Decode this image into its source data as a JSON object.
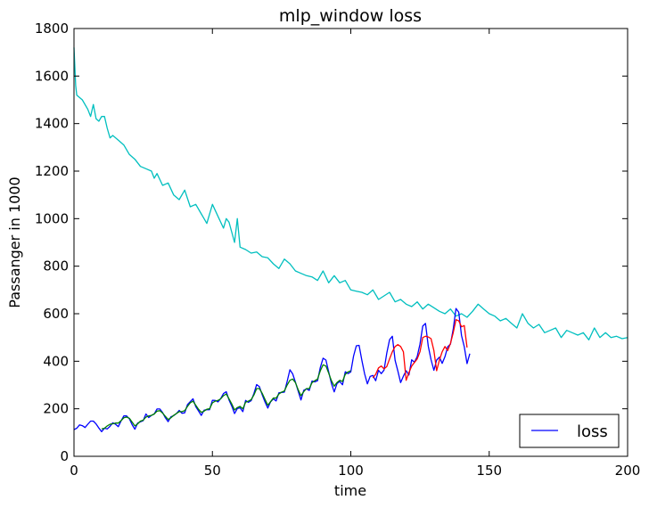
{
  "chart_data": {
    "type": "line",
    "title": "mlp_window loss",
    "xlabel": "time",
    "ylabel": "Passanger in 1000",
    "xlim": [
      0,
      200
    ],
    "ylim": [
      0,
      1800
    ],
    "xticks": [
      0,
      50,
      100,
      150,
      200
    ],
    "yticks": [
      0,
      200,
      400,
      600,
      800,
      1000,
      1200,
      1400,
      1600,
      1800
    ],
    "grid": false,
    "legend": {
      "position": "bottom-right",
      "entries": [
        {
          "label": "loss",
          "color": "#0000ff"
        }
      ]
    },
    "series": [
      {
        "name": "",
        "color": "#00bfbf",
        "x": [
          0,
          0.6,
          1,
          3,
          5,
          6,
          7,
          8,
          9,
          10,
          11,
          12,
          13,
          14,
          16,
          18,
          20,
          22,
          24,
          26,
          28,
          29,
          30,
          32,
          34,
          36,
          38,
          40,
          42,
          44,
          46,
          47,
          48,
          50,
          52,
          54,
          55,
          56,
          58,
          59,
          60,
          62,
          64,
          66,
          68,
          70,
          72,
          74,
          76,
          78,
          80,
          82,
          84,
          86,
          88,
          90,
          92,
          94,
          96,
          98,
          100,
          102,
          104,
          106,
          108,
          110,
          112,
          114,
          116,
          118,
          120,
          122,
          124,
          126,
          128,
          130,
          132,
          134,
          136,
          138,
          140,
          142,
          144,
          146,
          148,
          150,
          152,
          154,
          156,
          158,
          160,
          162,
          164,
          166,
          168,
          170,
          172,
          174,
          176,
          178,
          180,
          182,
          184,
          186,
          188,
          190,
          192,
          194,
          196,
          198,
          200
        ],
        "values": [
          1720,
          1560,
          1520,
          1500,
          1460,
          1430,
          1480,
          1420,
          1410,
          1430,
          1430,
          1380,
          1340,
          1350,
          1330,
          1310,
          1270,
          1250,
          1220,
          1210,
          1200,
          1170,
          1190,
          1140,
          1150,
          1100,
          1080,
          1120,
          1050,
          1060,
          1020,
          1000,
          980,
          1060,
          1010,
          960,
          1000,
          985,
          900,
          1000,
          880,
          870,
          855,
          860,
          840,
          835,
          810,
          790,
          830,
          810,
          780,
          770,
          760,
          755,
          740,
          780,
          730,
          760,
          730,
          740,
          700,
          695,
          690,
          680,
          700,
          660,
          675,
          690,
          650,
          660,
          640,
          630,
          650,
          620,
          640,
          625,
          610,
          600,
          620,
          590,
          600,
          585,
          610,
          640,
          620,
          600,
          590,
          570,
          580,
          560,
          540,
          600,
          560,
          540,
          555,
          520,
          530,
          540,
          500,
          530,
          520,
          510,
          520,
          490,
          540,
          500,
          520,
          500,
          505,
          495,
          500
        ]
      },
      {
        "name": "loss",
        "color": "#0000ff",
        "x": [
          0,
          1,
          2,
          3,
          4,
          5,
          6,
          7,
          8,
          9,
          10,
          11,
          12,
          13,
          14,
          15,
          16,
          17,
          18,
          19,
          20,
          21,
          22,
          23,
          24,
          25,
          26,
          27,
          28,
          29,
          30,
          31,
          32,
          33,
          34,
          35,
          36,
          37,
          38,
          39,
          40,
          41,
          42,
          43,
          44,
          45,
          46,
          47,
          48,
          49,
          50,
          51,
          52,
          53,
          54,
          55,
          56,
          57,
          58,
          59,
          60,
          61,
          62,
          63,
          64,
          65,
          66,
          67,
          68,
          69,
          70,
          71,
          72,
          73,
          74,
          75,
          76,
          77,
          78,
          79,
          80,
          81,
          82,
          83,
          84,
          85,
          86,
          87,
          88,
          89,
          90,
          91,
          92,
          93,
          94,
          95,
          96,
          97,
          98,
          99,
          100,
          101,
          102,
          103,
          104,
          105,
          106,
          107,
          108,
          109,
          110,
          111,
          112,
          113,
          114,
          115,
          116,
          117,
          118,
          119,
          120,
          121,
          122,
          123,
          124,
          125,
          126,
          127,
          128,
          129,
          130,
          131,
          132,
          133,
          134,
          135,
          136,
          137,
          138,
          139,
          140,
          141,
          142,
          143
        ],
        "values": [
          112,
          118,
          132,
          129,
          121,
          135,
          148,
          148,
          136,
          119,
          104,
          118,
          115,
          126,
          141,
          135,
          125,
          149,
          170,
          170,
          158,
          133,
          114,
          140,
          145,
          150,
          178,
          163,
          172,
          178,
          199,
          199,
          184,
          162,
          146,
          166,
          171,
          180,
          193,
          181,
          183,
          218,
          230,
          242,
          209,
          191,
          172,
          194,
          196,
          196,
          236,
          235,
          229,
          243,
          264,
          272,
          237,
          211,
          180,
          201,
          204,
          188,
          235,
          227,
          234,
          264,
          302,
          293,
          259,
          229,
          203,
          229,
          242,
          233,
          267,
          269,
          270,
          315,
          364,
          347,
          312,
          274,
          237,
          278,
          284,
          277,
          317,
          313,
          318,
          374,
          413,
          405,
          355,
          306,
          271,
          306,
          315,
          301,
          356,
          348,
          355,
          422,
          465,
          467,
          404,
          347,
          305,
          336,
          340,
          318,
          362,
          348,
          363,
          435,
          491,
          505,
          404,
          359,
          310,
          337,
          360,
          342,
          406,
          396,
          420,
          472,
          548,
          559,
          463,
          407,
          362,
          405,
          417,
          391,
          419,
          461,
          472,
          535,
          622,
          606,
          508,
          461,
          390,
          432
        ]
      },
      {
        "name": "",
        "color": "#008000",
        "x": [
          10,
          11,
          12,
          13,
          14,
          15,
          16,
          17,
          18,
          19,
          20,
          21,
          22,
          23,
          24,
          25,
          26,
          27,
          28,
          29,
          30,
          31,
          32,
          33,
          34,
          35,
          36,
          37,
          38,
          39,
          40,
          41,
          42,
          43,
          44,
          45,
          46,
          47,
          48,
          49,
          50,
          51,
          52,
          53,
          54,
          55,
          56,
          57,
          58,
          59,
          60,
          61,
          62,
          63,
          64,
          65,
          66,
          67,
          68,
          69,
          70,
          71,
          72,
          73,
          74,
          75,
          76,
          77,
          78,
          79,
          80,
          81,
          82,
          83,
          84,
          85,
          86,
          87,
          88,
          89,
          90,
          91,
          92,
          93,
          94,
          95,
          96,
          97,
          98,
          99,
          100
        ],
        "values": [
          115,
          118,
          128,
          135,
          137,
          140,
          140,
          150,
          162,
          165,
          160,
          144,
          128,
          136,
          148,
          152,
          165,
          170,
          172,
          178,
          190,
          192,
          182,
          168,
          155,
          162,
          172,
          180,
          188,
          188,
          192,
          210,
          225,
          232,
          215,
          198,
          185,
          190,
          198,
          200,
          225,
          232,
          235,
          242,
          255,
          262,
          242,
          220,
          195,
          205,
          210,
          200,
          228,
          232,
          238,
          258,
          285,
          285,
          265,
          240,
          215,
          230,
          245,
          245,
          262,
          270,
          275,
          300,
          320,
          325,
          310,
          280,
          255,
          272,
          285,
          285,
          310,
          318,
          325,
          360,
          385,
          380,
          350,
          318,
          295,
          310,
          320,
          315,
          345,
          355,
          360
        ]
      },
      {
        "name": "",
        "color": "#ff0000",
        "x": [
          108,
          109,
          110,
          111,
          112,
          113,
          114,
          115,
          116,
          117,
          118,
          119,
          120,
          121,
          122,
          123,
          124,
          125,
          126,
          127,
          128,
          129,
          130,
          131,
          132,
          133,
          134,
          135,
          136,
          137,
          138,
          139,
          140,
          141,
          142
        ],
        "values": [
          330,
          345,
          372,
          380,
          368,
          378,
          410,
          440,
          462,
          470,
          462,
          440,
          320,
          352,
          380,
          395,
          410,
          440,
          500,
          505,
          502,
          495,
          445,
          360,
          405,
          440,
          462,
          445,
          475,
          520,
          575,
          570,
          545,
          550,
          458
        ]
      }
    ]
  }
}
